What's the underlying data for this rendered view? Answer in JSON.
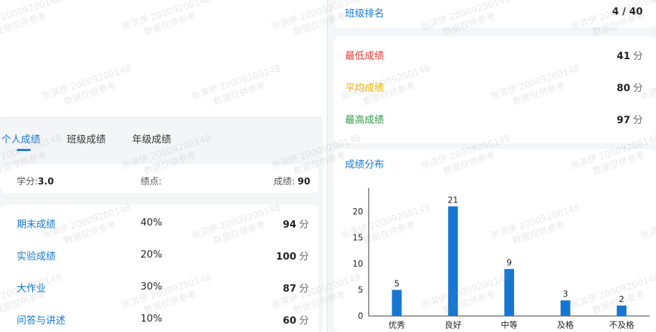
{
  "tabs": [
    {
      "label": "个人成绩",
      "active": true
    },
    {
      "label": "班级成绩",
      "active": false
    },
    {
      "label": "年级成绩",
      "active": false
    }
  ],
  "credit": {
    "credit_label": "学分:",
    "credit_value": "3.0",
    "gpa_label": "绩点:",
    "gpa_value": "",
    "total_label": "成绩:",
    "total_value": "90"
  },
  "scores": [
    {
      "name": "期末成绩",
      "weight": "40%",
      "value": "94",
      "unit": "分"
    },
    {
      "name": "实验成绩",
      "weight": "20%",
      "value": "100",
      "unit": "分"
    },
    {
      "name": "大作业",
      "weight": "30%",
      "value": "87",
      "unit": "分"
    },
    {
      "name": "问答与讲述",
      "weight": "10%",
      "value": "60",
      "unit": "分"
    }
  ],
  "rank": {
    "label": "班级排名",
    "value": "4 / 40"
  },
  "stats": [
    {
      "label": "最低成绩",
      "value": "41",
      "unit": "分",
      "color": "#e53935"
    },
    {
      "label": "平均成绩",
      "value": "80",
      "unit": "分",
      "color": "#f4b400"
    },
    {
      "label": "最高成绩",
      "value": "97",
      "unit": "分",
      "color": "#2e9b48"
    }
  ],
  "distribution_title": "成绩分布",
  "chart_data": {
    "type": "bar",
    "categories": [
      "优秀",
      "良好",
      "中等",
      "及格",
      "不及格"
    ],
    "values": [
      5,
      21,
      9,
      3,
      2
    ],
    "ylim": [
      0,
      24
    ],
    "yticks": [
      0,
      5,
      10,
      15,
      20
    ],
    "bar_color": "#1677d2",
    "grid": false
  },
  "watermark": {
    "line1": "张淇伊 20009200148",
    "line2": "数据仅供参考"
  }
}
